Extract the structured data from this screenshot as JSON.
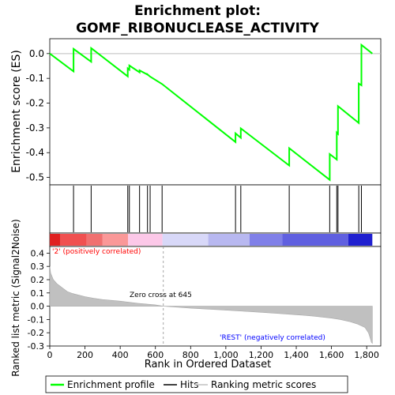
{
  "title_line1": "Enrichment plot:",
  "title_line2": "GOMF_RIBONUCLEASE_ACTIVITY",
  "ylabel_es": "Enrichment score (ES)",
  "ylabel_metric": "Ranked list metric (Signal2Noise)",
  "xlabel": "Rank in Ordered Dataset",
  "annotations": {
    "positive": "'2' (positively correlated)",
    "zero_cross": "Zero cross at 645",
    "negative": "'REST' (negatively correlated)"
  },
  "legend": {
    "enrichment": "Enrichment profile",
    "hits": "Hits",
    "ranking": "Ranking metric scores"
  },
  "colors": {
    "enrichment_line": "#00ff00",
    "hits": "#000000",
    "metric_fill": "#c0c0c0",
    "zero_line": "#bebebe",
    "positive_text": "#ff0000",
    "negative_text": "#0000ff"
  },
  "chart_data": [
    {
      "type": "line",
      "name": "enrichment_profile",
      "xlim": [
        0,
        1880
      ],
      "ylim": [
        -0.53,
        0.06
      ],
      "x_ticks": [
        0,
        200,
        400,
        600,
        800,
        1000,
        1200,
        1400,
        1600,
        1800
      ],
      "x_tick_labels": [
        "0",
        "200",
        "400",
        "600",
        "800",
        "1,000",
        "1,200",
        "1,400",
        "1,600",
        "1,800"
      ],
      "y_ticks": [
        0.0,
        -0.1,
        -0.2,
        -0.3,
        -0.4,
        -0.5
      ],
      "y_tick_labels": [
        "0.0",
        "-0.1",
        "-0.2",
        "-0.3",
        "-0.4",
        "-0.5"
      ],
      "x": [
        0,
        135,
        135,
        235,
        235,
        443,
        443,
        452,
        452,
        510,
        510,
        555,
        555,
        570,
        570,
        638,
        638,
        1055,
        1055,
        1085,
        1085,
        1360,
        1360,
        1590,
        1590,
        1630,
        1630,
        1637,
        1637,
        1755,
        1755,
        1770,
        1770,
        1832
      ],
      "y": [
        0.0,
        -0.072,
        0.019,
        -0.033,
        0.022,
        -0.092,
        -0.06,
        -0.065,
        -0.048,
        -0.076,
        -0.068,
        -0.085,
        -0.084,
        -0.093,
        -0.093,
        -0.123,
        -0.123,
        -0.357,
        -0.322,
        -0.34,
        -0.302,
        -0.452,
        -0.382,
        -0.51,
        -0.406,
        -0.428,
        -0.319,
        -0.324,
        -0.212,
        -0.28,
        -0.121,
        -0.128,
        0.035,
        0.0
      ]
    },
    {
      "type": "hits",
      "name": "hits",
      "x": [
        135,
        235,
        443,
        452,
        510,
        555,
        570,
        638,
        1055,
        1085,
        1360,
        1590,
        1630,
        1637,
        1755,
        1770
      ]
    },
    {
      "type": "heatmap",
      "name": "rank_colorbar",
      "x_edges": [
        0,
        60,
        210,
        300,
        445,
        640,
        900,
        1135,
        1320,
        1695,
        1832
      ],
      "colors": [
        "#e02020",
        "#f05050",
        "#f07070",
        "#fa9898",
        "#fcc8e8",
        "#d8d8f8",
        "#b8b8f0",
        "#8080e8",
        "#6060e0",
        "#2020d0"
      ]
    },
    {
      "type": "area",
      "name": "ranking_metric",
      "xlim": [
        0,
        1880
      ],
      "ylim": [
        -0.3,
        0.45
      ],
      "y_ticks": [
        0.4,
        0.3,
        0.2,
        0.1,
        0.0,
        -0.1,
        -0.2,
        -0.3
      ],
      "y_tick_labels": [
        "0.4",
        "0.3",
        "0.2",
        "0.1",
        "0.0",
        "-0.1",
        "-0.2",
        "-0.3"
      ],
      "zero_cross": 645,
      "x": [
        0,
        5,
        20,
        40,
        70,
        100,
        130,
        160,
        200,
        250,
        300,
        400,
        500,
        600,
        645,
        700,
        800,
        900,
        1000,
        1100,
        1200,
        1300,
        1400,
        1500,
        1600,
        1650,
        1700,
        1750,
        1790,
        1810,
        1820,
        1826,
        1832
      ],
      "y": [
        0.3,
        0.25,
        0.2,
        0.17,
        0.14,
        0.11,
        0.095,
        0.085,
        0.072,
        0.06,
        0.05,
        0.038,
        0.022,
        0.01,
        0.0,
        -0.005,
        -0.015,
        -0.022,
        -0.03,
        -0.038,
        -0.046,
        -0.055,
        -0.064,
        -0.075,
        -0.09,
        -0.1,
        -0.115,
        -0.135,
        -0.16,
        -0.2,
        -0.24,
        -0.27,
        -0.28
      ]
    }
  ]
}
